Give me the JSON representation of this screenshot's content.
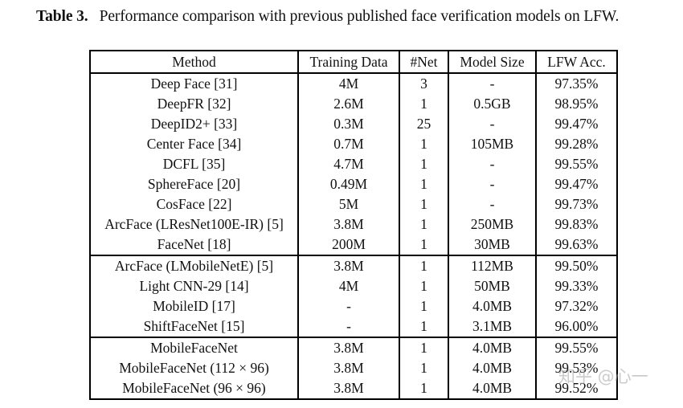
{
  "caption": {
    "label": "Table 3.",
    "text": "Performance comparison with previous published face verification models on LFW."
  },
  "table": {
    "headers": [
      "Method",
      "Training Data",
      "#Net",
      "Model Size",
      "LFW Acc."
    ],
    "groups": [
      {
        "rows": [
          {
            "method": "Deep Face [31]",
            "training_data": "4M",
            "net": "3",
            "model_size": "-",
            "lfw_acc": "97.35%"
          },
          {
            "method": "DeepFR [32]",
            "training_data": "2.6M",
            "net": "1",
            "model_size": "0.5GB",
            "lfw_acc": "98.95%"
          },
          {
            "method": "DeepID2+ [33]",
            "training_data": "0.3M",
            "net": "25",
            "model_size": "-",
            "lfw_acc": "99.47%"
          },
          {
            "method": "Center Face [34]",
            "training_data": "0.7M",
            "net": "1",
            "model_size": "105MB",
            "lfw_acc": "99.28%"
          },
          {
            "method": "DCFL [35]",
            "training_data": "4.7M",
            "net": "1",
            "model_size": "-",
            "lfw_acc": "99.55%"
          },
          {
            "method": "SphereFace [20]",
            "training_data": "0.49M",
            "net": "1",
            "model_size": "-",
            "lfw_acc": "99.47%"
          },
          {
            "method": "CosFace [22]",
            "training_data": "5M",
            "net": "1",
            "model_size": "-",
            "lfw_acc": "99.73%"
          },
          {
            "method": "ArcFace (LResNet100E-IR) [5]",
            "training_data": "3.8M",
            "net": "1",
            "model_size": "250MB",
            "lfw_acc": "99.83%"
          },
          {
            "method": "FaceNet [18]",
            "training_data": "200M",
            "net": "1",
            "model_size": "30MB",
            "lfw_acc": "99.63%"
          }
        ]
      },
      {
        "rows": [
          {
            "method": "ArcFace (LMobileNetE) [5]",
            "training_data": "3.8M",
            "net": "1",
            "model_size": "112MB",
            "lfw_acc": "99.50%"
          },
          {
            "method": "Light CNN-29 [14]",
            "training_data": "4M",
            "net": "1",
            "model_size": "50MB",
            "lfw_acc": "99.33%"
          },
          {
            "method": "MobileID [17]",
            "training_data": "-",
            "net": "1",
            "model_size": "4.0MB",
            "lfw_acc": "97.32%"
          },
          {
            "method": "ShiftFaceNet [15]",
            "training_data": "-",
            "net": "1",
            "model_size": "3.1MB",
            "lfw_acc": "96.00%"
          }
        ]
      },
      {
        "rows": [
          {
            "method": "MobileFaceNet",
            "training_data": "3.8M",
            "net": "1",
            "model_size": "4.0MB",
            "lfw_acc": "99.55%"
          },
          {
            "method": "MobileFaceNet (112 × 96)",
            "training_data": "3.8M",
            "net": "1",
            "model_size": "4.0MB",
            "lfw_acc": "99.53%"
          },
          {
            "method": "MobileFaceNet (96 × 96)",
            "training_data": "3.8M",
            "net": "1",
            "model_size": "4.0MB",
            "lfw_acc": "99.52%"
          }
        ]
      }
    ]
  },
  "watermark": {
    "text": "知乎 @心一"
  }
}
